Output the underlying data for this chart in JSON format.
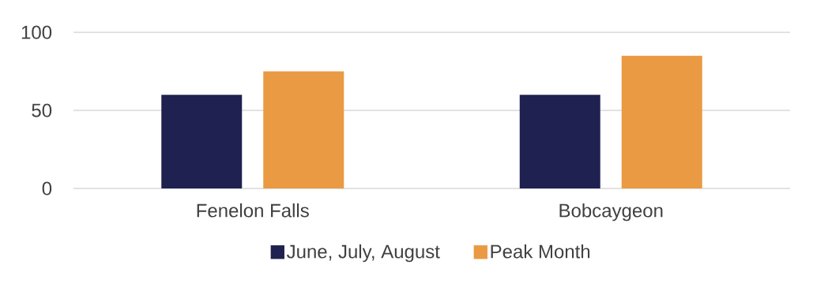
{
  "chart_data": {
    "type": "bar",
    "categories": [
      "Fenelon Falls",
      "Bobcaygeon"
    ],
    "series": [
      {
        "name": "June, July, August",
        "color": "#1f2150",
        "values": [
          60,
          60
        ]
      },
      {
        "name": "Peak Month",
        "color": "#e99a43",
        "values": [
          75,
          85
        ]
      }
    ],
    "ylim": [
      0,
      100
    ],
    "yticks": [
      0,
      50,
      100
    ],
    "grid": "y",
    "legend": "bottom"
  }
}
